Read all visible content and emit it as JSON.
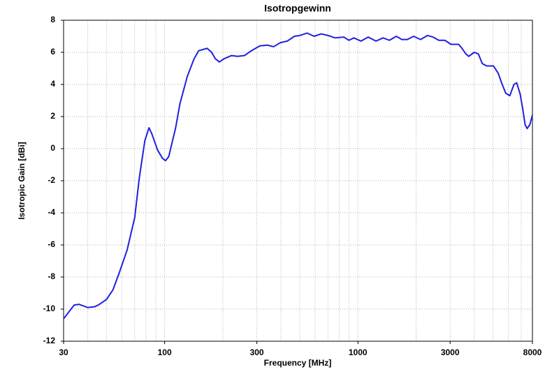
{
  "chart_data": {
    "type": "line",
    "title": "Isotropgewinn",
    "x_label": "Frequency [MHz]",
    "y_label": "Isotropic Gain [dBi]",
    "x_scale": "log",
    "grid": true,
    "xlim": [
      30,
      8000
    ],
    "ylim": [
      -12,
      8
    ],
    "xticks": [
      30,
      100,
      300,
      1000,
      3000,
      8000
    ],
    "xminorticks": [
      40,
      50,
      60,
      70,
      80,
      90,
      200,
      400,
      500,
      600,
      700,
      800,
      900,
      2000,
      4000,
      5000,
      6000,
      7000
    ],
    "yticks": [
      -12,
      -10,
      -8,
      -6,
      -4,
      -2,
      0,
      2,
      4,
      6,
      8
    ],
    "series": [
      {
        "color": "#1f1fe0",
        "x": [
          30,
          34,
          36,
          40,
          43.5,
          46,
          50,
          54,
          58,
          64,
          70,
          74,
          79,
          83,
          86,
          92,
          97.5,
          101,
          105,
          114,
          120,
          131,
          142,
          150,
          166,
          175,
          183,
          192,
          203,
          222,
          238,
          259,
          281,
          311,
          340,
          366,
          397,
          431,
          469,
          500,
          546,
          593,
          645,
          701,
          762,
          847,
          898,
          953,
          1037,
          1131,
          1240,
          1350,
          1456,
          1580,
          1689,
          1802,
          1942,
          2110,
          2290,
          2450,
          2620,
          2820,
          3030,
          3320,
          3430,
          3620,
          3740,
          4000,
          4200,
          4400,
          4640,
          5030,
          5320,
          5540,
          5820,
          6110,
          6420,
          6630,
          6910,
          7120,
          7330,
          7510,
          7760,
          8000
        ],
        "values": [
          -10.6,
          -9.75,
          -9.7,
          -9.9,
          -9.85,
          -9.7,
          -9.4,
          -8.8,
          -7.8,
          -6.3,
          -4.3,
          -1.8,
          0.5,
          1.3,
          0.9,
          -0.1,
          -0.6,
          -0.75,
          -0.5,
          1.3,
          2.8,
          4.5,
          5.6,
          6.1,
          6.25,
          6.0,
          5.6,
          5.4,
          5.6,
          5.8,
          5.75,
          5.8,
          6.1,
          6.4,
          6.45,
          6.35,
          6.6,
          6.7,
          7.0,
          7.05,
          7.2,
          7.0,
          7.15,
          7.05,
          6.9,
          6.95,
          6.75,
          6.9,
          6.7,
          6.95,
          6.7,
          6.9,
          6.75,
          7.0,
          6.8,
          6.8,
          7.0,
          6.8,
          7.05,
          6.95,
          6.75,
          6.75,
          6.5,
          6.5,
          6.3,
          5.9,
          5.75,
          6.0,
          5.9,
          5.3,
          5.15,
          5.15,
          4.7,
          4.1,
          3.45,
          3.3,
          4.0,
          4.1,
          3.4,
          2.5,
          1.5,
          1.25,
          1.5,
          2.1
        ]
      }
    ]
  }
}
